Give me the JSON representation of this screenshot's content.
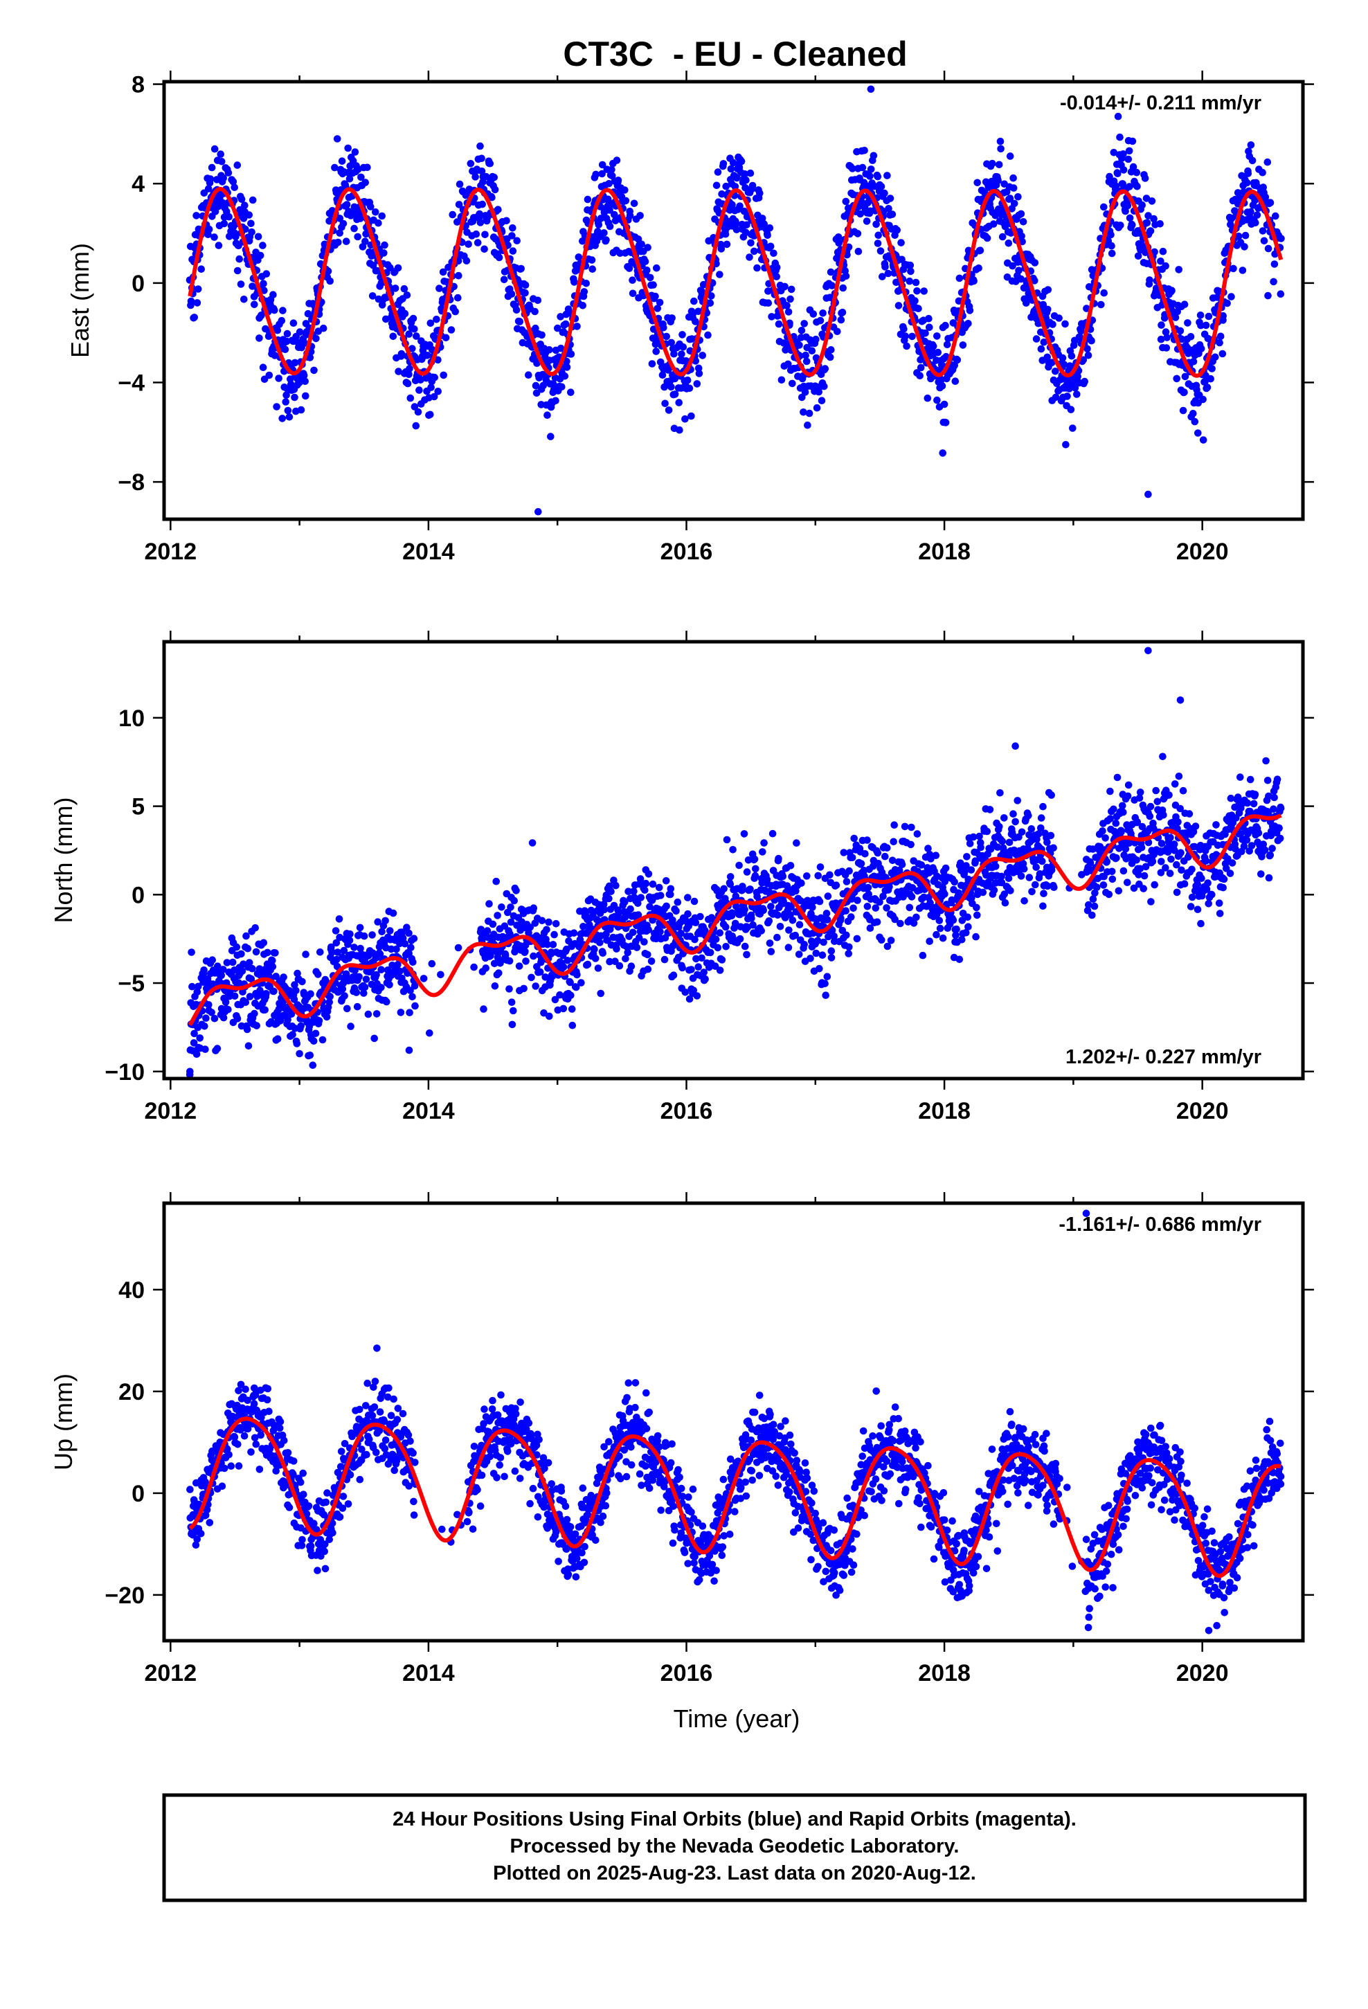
{
  "title": "CT3C  - EU - Cleaned",
  "xlabel": "Time (year)",
  "footer": {
    "line1": "24 Hour Positions Using Final Orbits (blue) and Rapid Orbits (magenta).",
    "line2": "Processed by the Nevada Geodetic Laboratory.",
    "line3": "Plotted on 2025-Aug-23. Last data on 2020-Aug-12."
  },
  "colors": {
    "observations": "#0000ff",
    "model": "#ff0000",
    "frame": "#000000"
  },
  "chart_data": [
    {
      "type": "scatter",
      "component": "east",
      "ylabel": "East (mm)",
      "rate_label": "-0.014+/- 0.211 mm/yr",
      "rate_position": "top-right",
      "xlim": [
        2011.95,
        2020.78
      ],
      "ylim": [
        -9.5,
        8.1
      ],
      "xticks": [
        2012,
        2014,
        2016,
        2018,
        2020
      ],
      "xtick_labels": [
        "2012",
        "2014",
        "2016",
        "2018",
        "2020"
      ],
      "yticks": [
        -8,
        -4,
        0,
        4,
        8
      ],
      "ytick_labels": [
        "−8",
        "−4",
        "0",
        "4",
        "8"
      ],
      "time_span": [
        2012.15,
        2020.61
      ],
      "model": {
        "offset": 0.0,
        "trend_mm_per_yr": -0.014,
        "annual_amp": 3.6,
        "annual_peak_year_fraction": 0.42,
        "semiannual_amp": 0.45,
        "semiannual_peak_year_fraction": 0.3
      },
      "scatter_sd": 1.0,
      "n_points": 2400,
      "gaps": [],
      "outliers": [
        [
          2014.85,
          -9.2
        ],
        [
          2017.43,
          7.8
        ],
        [
          2019.58,
          -8.5
        ]
      ]
    },
    {
      "type": "scatter",
      "component": "north",
      "ylabel": "North (mm)",
      "rate_label": "1.202+/- 0.227 mm/yr",
      "rate_position": "bottom-right",
      "xlim": [
        2011.95,
        2020.78
      ],
      "ylim": [
        -10.4,
        14.3
      ],
      "xticks": [
        2012,
        2014,
        2016,
        2018,
        2020
      ],
      "xtick_labels": [
        "2012",
        "2014",
        "2016",
        "2018",
        "2020"
      ],
      "yticks": [
        -10,
        -5,
        0,
        5,
        10
      ],
      "ytick_labels": [
        "−10",
        "−5",
        "0",
        "5",
        "10"
      ],
      "time_span": [
        2012.15,
        2020.61
      ],
      "model": {
        "offset": -1.2,
        "trend_mm_per_yr": 1.202,
        "ref_year": 2016.4,
        "annual_amp": 1.1,
        "annual_peak_year_fraction": 0.55,
        "semiannual_amp": 0.55,
        "semiannual_peak_year_fraction": 0.3
      },
      "scatter_sd": 1.4,
      "n_points": 2400,
      "gaps": [
        [
          2013.9,
          2014.4
        ],
        [
          2018.85,
          2019.1
        ]
      ],
      "outliers": [
        [
          2012.15,
          -10.0
        ],
        [
          2013.85,
          -8.8
        ],
        [
          2019.58,
          13.8
        ],
        [
          2019.83,
          11.0
        ],
        [
          2018.55,
          8.4
        ]
      ]
    },
    {
      "type": "scatter",
      "component": "up",
      "ylabel": "Up (mm)",
      "rate_label": "-1.161+/- 0.686 mm/yr",
      "rate_position": "top-right",
      "xlim": [
        2011.95,
        2020.78
      ],
      "ylim": [
        -29,
        57
      ],
      "xticks": [
        2012,
        2014,
        2016,
        2018,
        2020
      ],
      "xtick_labels": [
        "2012",
        "2014",
        "2016",
        "2018",
        "2020"
      ],
      "yticks": [
        -20,
        0,
        20,
        40
      ],
      "ytick_labels": [
        "−20",
        "0",
        "20",
        "40"
      ],
      "time_span": [
        2012.15,
        2020.61
      ],
      "model": {
        "offset": 0.5,
        "trend_mm_per_yr": -1.161,
        "ref_year": 2016.4,
        "annual_amp": 11.0,
        "annual_peak_year_fraction": 0.62,
        "semiannual_amp": 1.5,
        "semiannual_peak_year_fraction": 0.4
      },
      "scatter_sd": 3.8,
      "n_points": 2400,
      "gaps": [
        [
          2013.9,
          2014.3
        ],
        [
          2018.9,
          2019.1
        ]
      ],
      "outliers": [
        [
          2019.1,
          55
        ],
        [
          2013.6,
          28.5
        ],
        [
          2020.05,
          -27
        ]
      ]
    }
  ]
}
